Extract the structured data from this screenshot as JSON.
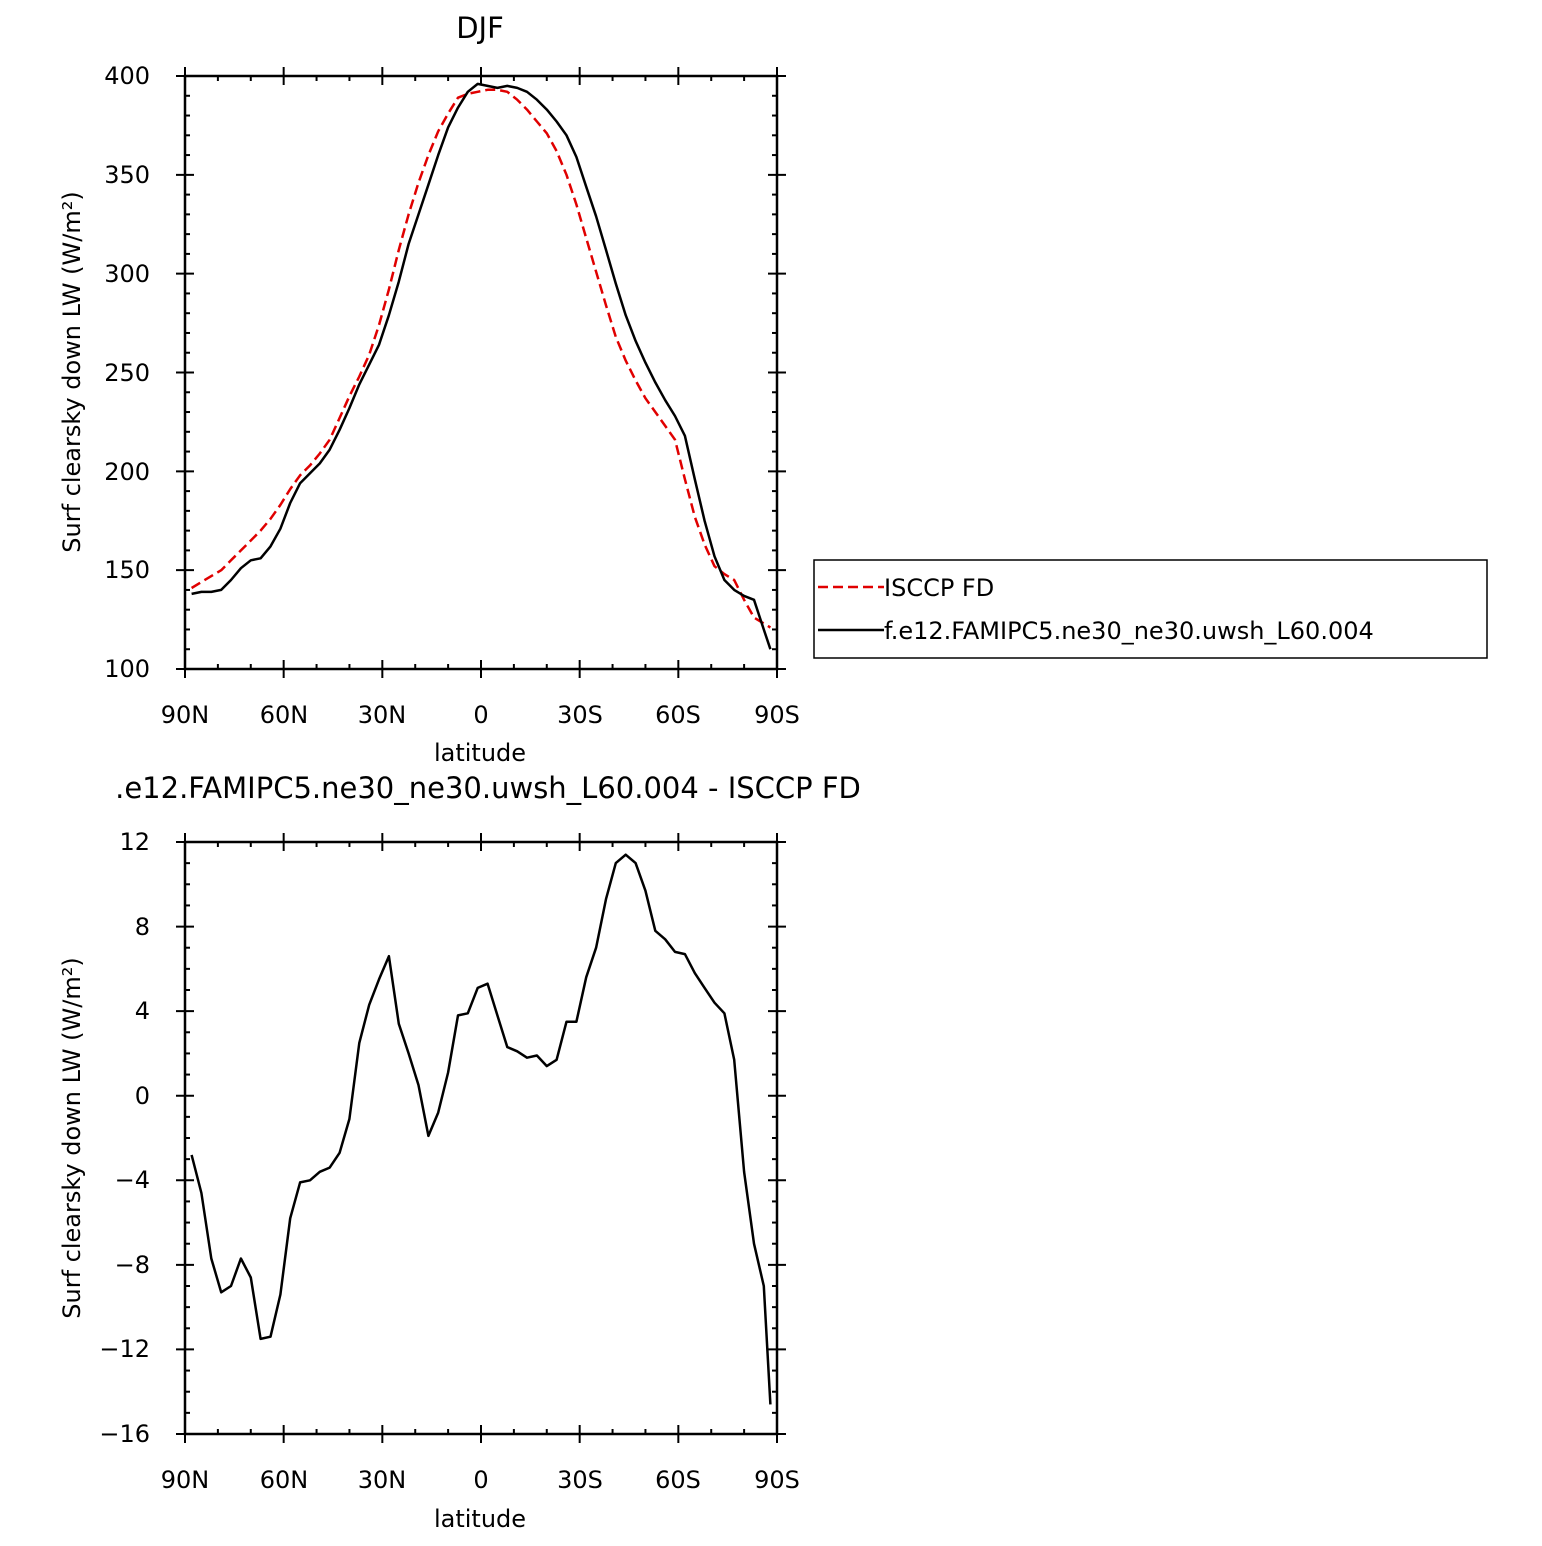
{
  "colors": {
    "obs": "#e00000",
    "model": "#000000",
    "axes": "#000000"
  },
  "top_panel": {
    "title": "DJF",
    "xlabel": "latitude",
    "ylabel": "Surf clearsky down LW (W/m²)",
    "ytick_labels": [
      "100",
      "150",
      "200",
      "250",
      "300",
      "350",
      "400"
    ],
    "xtick_labels": [
      "90N",
      "60N",
      "30N",
      "0",
      "30S",
      "60S",
      "90S"
    ]
  },
  "bottom_panel": {
    "title": ".e12.FAMIPC5.ne30_ne30.uwsh_L60.004 - ISCCP FD",
    "xlabel": "latitude",
    "ylabel": "Surf clearsky down LW (W/m²)",
    "ytick_labels": [
      "12",
      "8",
      "4",
      "0",
      "−4",
      "−8",
      "−12",
      "−16"
    ],
    "xtick_labels": [
      "90N",
      "60N",
      "30N",
      "0",
      "30S",
      "60S",
      "90S"
    ]
  },
  "legend": {
    "entries": [
      {
        "label": "ISCCP FD",
        "style": "dashed",
        "color": "#e00000"
      },
      {
        "label": "f.e12.FAMIPC5.ne30_ne30.uwsh_L60.004",
        "style": "solid",
        "color": "#000000"
      }
    ]
  },
  "chart_data": [
    {
      "type": "line",
      "title": "DJF",
      "xlabel": "latitude",
      "ylabel": "Surf clearsky down LW (W/m²)",
      "xlim": [
        90,
        -90
      ],
      "ylim": [
        100,
        400
      ],
      "x_tick_values": [
        90,
        60,
        30,
        0,
        -30,
        -60,
        -90
      ],
      "y_tick_values": [
        100,
        150,
        200,
        250,
        300,
        350,
        400
      ],
      "grid": false,
      "legend_position": "right",
      "series": [
        {
          "name": "ISCCP FD",
          "style": "dashed",
          "color": "#e00000",
          "x": [
            88,
            85,
            82,
            79,
            76,
            73,
            70,
            67,
            64,
            61,
            58,
            55,
            52,
            49,
            46,
            43,
            40,
            37,
            34,
            31,
            28,
            25,
            22,
            19,
            16,
            13,
            10,
            7,
            4,
            1,
            -2,
            -5,
            -8,
            -11,
            -14,
            -17,
            -20,
            -23,
            -26,
            -29,
            -32,
            -35,
            -38,
            -41,
            -44,
            -47,
            -50,
            -53,
            -56,
            -59,
            -62,
            -65,
            -68,
            -71,
            -74,
            -77,
            -80,
            -83,
            -86,
            -88
          ],
          "values": [
            141,
            144,
            147,
            150,
            155,
            160,
            165,
            170,
            176,
            183,
            191,
            198,
            203,
            209,
            216,
            227,
            238,
            248,
            259,
            274,
            292,
            312,
            330,
            346,
            360,
            372,
            381,
            389,
            391,
            392,
            393,
            393,
            392,
            388,
            383,
            377,
            371,
            362,
            350,
            335,
            318,
            301,
            284,
            268,
            256,
            246,
            237,
            230,
            223,
            216,
            196,
            177,
            163,
            152,
            148,
            145,
            135,
            126,
            123,
            121
          ]
        },
        {
          "name": "f.e12.FAMIPC5.ne30_ne30.uwsh_L60.004",
          "style": "solid",
          "color": "#000000",
          "x": [
            88,
            85,
            82,
            79,
            76,
            73,
            70,
            67,
            64,
            61,
            58,
            55,
            52,
            49,
            46,
            43,
            40,
            37,
            34,
            31,
            28,
            25,
            22,
            19,
            16,
            13,
            10,
            7,
            4,
            1,
            -2,
            -5,
            -8,
            -11,
            -14,
            -17,
            -20,
            -23,
            -26,
            -29,
            -32,
            -35,
            -38,
            -41,
            -44,
            -47,
            -50,
            -53,
            -56,
            -59,
            -62,
            -65,
            -68,
            -71,
            -74,
            -77,
            -80,
            -83,
            -86,
            -88
          ],
          "values": [
            138,
            139,
            139,
            140,
            145,
            151,
            155,
            156,
            162,
            171,
            184,
            194,
            199,
            204,
            211,
            221,
            232,
            244,
            254,
            264,
            279,
            296,
            315,
            330,
            345,
            360,
            374,
            384,
            392,
            396,
            395,
            394,
            395,
            394,
            392,
            388,
            383,
            377,
            370,
            359,
            344,
            329,
            312,
            295,
            279,
            266,
            255,
            245,
            236,
            228,
            218,
            196,
            175,
            157,
            145,
            140,
            137,
            135,
            120,
            110
          ]
        }
      ]
    },
    {
      "type": "line",
      "title": ".e12.FAMIPC5.ne30_ne30.uwsh_L60.004 - ISCCP FD",
      "xlabel": "latitude",
      "ylabel": "Surf clearsky down LW (W/m²)",
      "xlim": [
        90,
        -90
      ],
      "ylim": [
        -16,
        12
      ],
      "x_tick_values": [
        90,
        60,
        30,
        0,
        -30,
        -60,
        -90
      ],
      "y_tick_values": [
        12,
        8,
        4,
        0,
        -4,
        -8,
        -12,
        -16
      ],
      "grid": false,
      "series": [
        {
          "style": "solid",
          "color": "#000000",
          "x": [
            88,
            85,
            82,
            79,
            76,
            73,
            70,
            67,
            64,
            61,
            58,
            55,
            52,
            49,
            46,
            43,
            40,
            37,
            34,
            31,
            28,
            25,
            22,
            19,
            16,
            13,
            10,
            7,
            4,
            1,
            -2,
            -5,
            -8,
            -11,
            -14,
            -17,
            -20,
            -23,
            -26,
            -29,
            -32,
            -35,
            -38,
            -41,
            -44,
            -47,
            -50,
            -53,
            -56,
            -59,
            -62,
            -65,
            -68,
            -71,
            -74,
            -77,
            -80,
            -83,
            -86,
            -88
          ],
          "values": [
            -2.8,
            -4.6,
            -7.7,
            -9.3,
            -9.0,
            -7.7,
            -8.6,
            -11.5,
            -11.4,
            -9.4,
            -5.8,
            -4.1,
            -4.0,
            -3.6,
            -3.4,
            -2.7,
            -1.1,
            2.5,
            4.3,
            5.5,
            6.6,
            3.4,
            2.0,
            0.5,
            -1.9,
            -0.8,
            1.1,
            3.8,
            3.9,
            5.1,
            5.3,
            3.8,
            2.3,
            2.1,
            1.8,
            1.9,
            1.4,
            1.7,
            3.5,
            3.5,
            5.6,
            7.0,
            9.3,
            11.0,
            11.4,
            11.0,
            9.7,
            7.8,
            7.4,
            6.8,
            6.7,
            5.8,
            5.1,
            4.4,
            3.9,
            1.7,
            -3.6,
            -7.0,
            -9.0,
            -14.6
          ]
        }
      ]
    }
  ]
}
